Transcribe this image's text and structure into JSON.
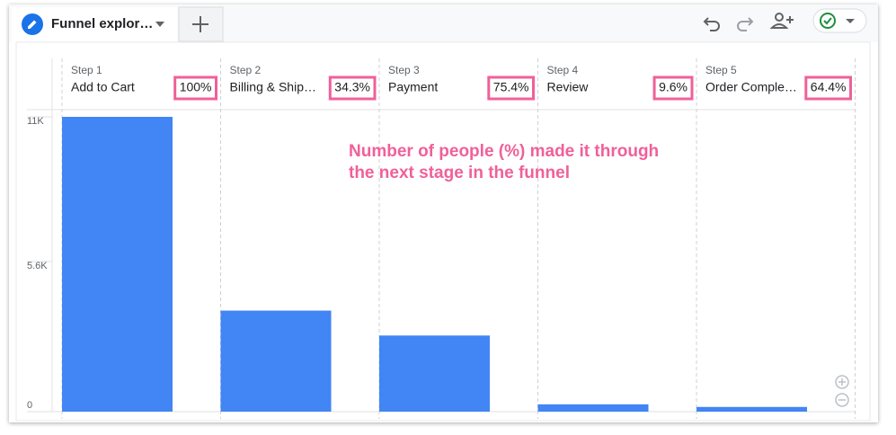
{
  "tab": {
    "title": "Funnel explor…"
  },
  "chart_data": {
    "type": "bar",
    "step_labels": [
      "Step 1",
      "Step 2",
      "Step 3",
      "Step 4",
      "Step 5"
    ],
    "categories": [
      "Add to Cart",
      "Billing & Ship…",
      "Payment",
      "Review",
      "Order Comple…"
    ],
    "completion_rates": [
      "100%",
      "34.3%",
      "75.4%",
      "9.6%",
      "64.4%"
    ],
    "values": [
      11000,
      3770,
      2840,
      272,
      175
    ],
    "color": "#4285f4",
    "ylim": [
      0,
      11000
    ],
    "yticks": [
      0,
      {
        "value": 5600,
        "label": "5.6K"
      },
      {
        "value": 11000,
        "label": "11K"
      }
    ],
    "annotation": [
      "Number of people (%) made it through",
      "the next stage in the funnel"
    ]
  }
}
